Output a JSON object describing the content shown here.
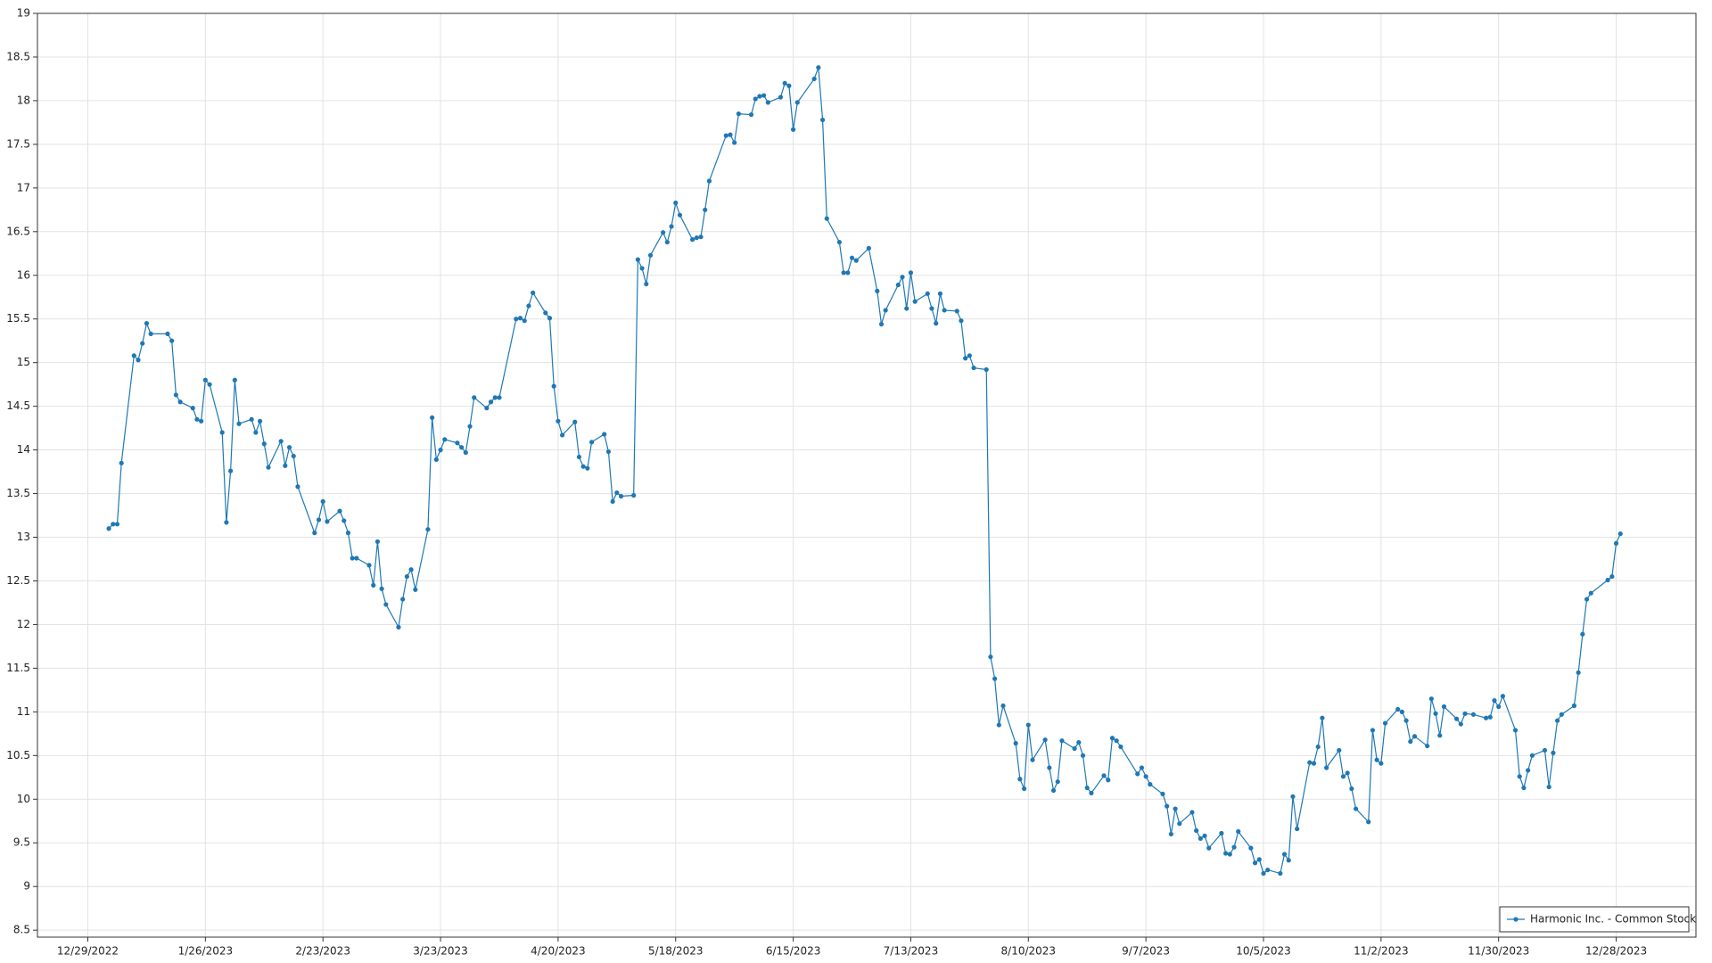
{
  "chart_data": {
    "type": "line",
    "x": [
      "2023-01-03",
      "2023-01-04",
      "2023-01-05",
      "2023-01-06",
      "2023-01-09",
      "2023-01-10",
      "2023-01-11",
      "2023-01-12",
      "2023-01-13",
      "2023-01-17",
      "2023-01-18",
      "2023-01-19",
      "2023-01-20",
      "2023-01-23",
      "2023-01-24",
      "2023-01-25",
      "2023-01-26",
      "2023-01-27",
      "2023-01-30",
      "2023-01-31",
      "2023-02-01",
      "2023-02-02",
      "2023-02-03",
      "2023-02-06",
      "2023-02-07",
      "2023-02-08",
      "2023-02-09",
      "2023-02-10",
      "2023-02-13",
      "2023-02-14",
      "2023-02-15",
      "2023-02-16",
      "2023-02-17",
      "2023-02-21",
      "2023-02-22",
      "2023-02-23",
      "2023-02-24",
      "2023-02-27",
      "2023-02-28",
      "2023-03-01",
      "2023-03-02",
      "2023-03-03",
      "2023-03-06",
      "2023-03-07",
      "2023-03-08",
      "2023-03-09",
      "2023-03-10",
      "2023-03-13",
      "2023-03-14",
      "2023-03-15",
      "2023-03-16",
      "2023-03-17",
      "2023-03-20",
      "2023-03-21",
      "2023-03-22",
      "2023-03-23",
      "2023-03-24",
      "2023-03-27",
      "2023-03-28",
      "2023-03-29",
      "2023-03-30",
      "2023-03-31",
      "2023-04-03",
      "2023-04-04",
      "2023-04-05",
      "2023-04-06",
      "2023-04-10",
      "2023-04-11",
      "2023-04-12",
      "2023-04-13",
      "2023-04-14",
      "2023-04-17",
      "2023-04-18",
      "2023-04-19",
      "2023-04-20",
      "2023-04-21",
      "2023-04-24",
      "2023-04-25",
      "2023-04-26",
      "2023-04-27",
      "2023-04-28",
      "2023-05-01",
      "2023-05-02",
      "2023-05-03",
      "2023-05-04",
      "2023-05-05",
      "2023-05-08",
      "2023-05-09",
      "2023-05-10",
      "2023-05-11",
      "2023-05-12",
      "2023-05-15",
      "2023-05-16",
      "2023-05-17",
      "2023-05-18",
      "2023-05-19",
      "2023-05-22",
      "2023-05-23",
      "2023-05-24",
      "2023-05-25",
      "2023-05-26",
      "2023-05-30",
      "2023-05-31",
      "2023-06-01",
      "2023-06-02",
      "2023-06-05",
      "2023-06-06",
      "2023-06-07",
      "2023-06-08",
      "2023-06-09",
      "2023-06-12",
      "2023-06-13",
      "2023-06-14",
      "2023-06-15",
      "2023-06-16",
      "2023-06-20",
      "2023-06-21",
      "2023-06-22",
      "2023-06-23",
      "2023-06-26",
      "2023-06-27",
      "2023-06-28",
      "2023-06-29",
      "2023-06-30",
      "2023-07-03",
      "2023-07-05",
      "2023-07-06",
      "2023-07-07",
      "2023-07-10",
      "2023-07-11",
      "2023-07-12",
      "2023-07-13",
      "2023-07-14",
      "2023-07-17",
      "2023-07-18",
      "2023-07-19",
      "2023-07-20",
      "2023-07-21",
      "2023-07-24",
      "2023-07-25",
      "2023-07-26",
      "2023-07-27",
      "2023-07-28",
      "2023-07-31",
      "2023-08-01",
      "2023-08-02",
      "2023-08-03",
      "2023-08-04",
      "2023-08-07",
      "2023-08-08",
      "2023-08-09",
      "2023-08-10",
      "2023-08-11",
      "2023-08-14",
      "2023-08-15",
      "2023-08-16",
      "2023-08-17",
      "2023-08-18",
      "2023-08-21",
      "2023-08-22",
      "2023-08-23",
      "2023-08-24",
      "2023-08-25",
      "2023-08-28",
      "2023-08-29",
      "2023-08-30",
      "2023-08-31",
      "2023-09-01",
      "2023-09-05",
      "2023-09-06",
      "2023-09-07",
      "2023-09-08",
      "2023-09-11",
      "2023-09-12",
      "2023-09-13",
      "2023-09-14",
      "2023-09-15",
      "2023-09-18",
      "2023-09-19",
      "2023-09-20",
      "2023-09-21",
      "2023-09-22",
      "2023-09-25",
      "2023-09-26",
      "2023-09-27",
      "2023-09-28",
      "2023-09-29",
      "2023-10-02",
      "2023-10-03",
      "2023-10-04",
      "2023-10-05",
      "2023-10-06",
      "2023-10-09",
      "2023-10-10",
      "2023-10-11",
      "2023-10-12",
      "2023-10-13",
      "2023-10-16",
      "2023-10-17",
      "2023-10-18",
      "2023-10-19",
      "2023-10-20",
      "2023-10-23",
      "2023-10-24",
      "2023-10-25",
      "2023-10-26",
      "2023-10-27",
      "2023-10-30",
      "2023-10-31",
      "2023-11-01",
      "2023-11-02",
      "2023-11-03",
      "2023-11-06",
      "2023-11-07",
      "2023-11-08",
      "2023-11-09",
      "2023-11-10",
      "2023-11-13",
      "2023-11-14",
      "2023-11-15",
      "2023-11-16",
      "2023-11-17",
      "2023-11-20",
      "2023-11-21",
      "2023-11-22",
      "2023-11-24",
      "2023-11-27",
      "2023-11-28",
      "2023-11-29",
      "2023-11-30",
      "2023-12-01",
      "2023-12-04",
      "2023-12-05",
      "2023-12-06",
      "2023-12-07",
      "2023-12-08",
      "2023-12-11",
      "2023-12-12",
      "2023-12-13",
      "2023-12-14",
      "2023-12-15",
      "2023-12-18",
      "2023-12-19",
      "2023-12-20",
      "2023-12-21",
      "2023-12-22",
      "2023-12-26",
      "2023-12-27",
      "2023-12-28",
      "2023-12-29"
    ],
    "series": [
      {
        "name": "Harmonic Inc. - Common Stock",
        "color": "#1f78b4",
        "values": [
          13.1,
          13.15,
          13.15,
          13.85,
          15.08,
          15.03,
          15.22,
          15.45,
          15.33,
          15.33,
          15.25,
          14.63,
          14.55,
          14.48,
          14.35,
          14.33,
          14.8,
          14.75,
          14.2,
          13.17,
          13.76,
          14.8,
          14.3,
          14.35,
          14.2,
          14.33,
          14.07,
          13.8,
          14.1,
          13.82,
          14.03,
          13.93,
          13.58,
          13.05,
          13.2,
          13.41,
          13.18,
          13.3,
          13.19,
          13.05,
          12.76,
          12.76,
          12.68,
          12.45,
          12.95,
          12.41,
          12.23,
          11.97,
          12.29,
          12.55,
          12.63,
          12.4,
          13.09,
          14.37,
          13.89,
          14.0,
          14.12,
          14.08,
          14.03,
          13.97,
          14.27,
          14.6,
          14.48,
          14.55,
          14.6,
          14.6,
          15.5,
          15.51,
          15.48,
          15.65,
          15.8,
          15.57,
          15.51,
          14.73,
          14.33,
          14.17,
          14.32,
          13.92,
          13.81,
          13.79,
          14.09,
          14.18,
          13.98,
          13.41,
          13.51,
          13.47,
          13.48,
          16.18,
          16.08,
          15.9,
          16.23,
          16.49,
          16.38,
          16.56,
          16.83,
          16.69,
          16.41,
          16.43,
          16.44,
          16.75,
          17.08,
          17.6,
          17.61,
          17.52,
          17.85,
          17.84,
          18.02,
          18.05,
          18.06,
          17.98,
          18.04,
          18.2,
          18.17,
          17.67,
          17.98,
          18.25,
          18.38,
          17.78,
          16.65,
          16.38,
          16.03,
          16.03,
          16.2,
          16.17,
          16.31,
          15.82,
          15.44,
          15.6,
          15.89,
          15.98,
          15.62,
          16.03,
          15.7,
          15.79,
          15.62,
          15.45,
          15.79,
          15.6,
          15.59,
          15.48,
          15.05,
          15.08,
          14.94,
          14.92,
          11.63,
          11.38,
          10.85,
          11.07,
          10.64,
          10.23,
          10.12,
          10.85,
          10.45,
          10.68,
          10.36,
          10.1,
          10.2,
          10.67,
          10.58,
          10.65,
          10.5,
          10.13,
          10.07,
          10.27,
          10.22,
          10.7,
          10.67,
          10.6,
          10.29,
          10.36,
          10.26,
          10.17,
          10.06,
          9.92,
          9.6,
          9.89,
          9.72,
          9.85,
          9.64,
          9.55,
          9.58,
          9.44,
          9.61,
          9.38,
          9.37,
          9.45,
          9.63,
          9.44,
          9.27,
          9.31,
          9.15,
          9.19,
          9.15,
          9.37,
          9.3,
          10.03,
          9.66,
          10.42,
          10.41,
          10.6,
          10.93,
          10.36,
          10.56,
          10.26,
          10.3,
          10.12,
          9.89,
          9.74,
          10.79,
          10.45,
          10.41,
          10.87,
          11.03,
          11.0,
          10.9,
          10.66,
          10.72,
          10.61,
          11.15,
          10.98,
          10.73,
          11.06,
          10.92,
          10.86,
          10.98,
          10.97,
          10.93,
          10.94,
          11.13,
          11.06,
          11.18,
          10.79,
          10.26,
          10.13,
          10.33,
          10.5,
          10.56,
          10.14,
          10.53,
          10.9,
          10.97,
          11.07,
          11.45,
          11.89,
          12.29,
          12.36,
          12.51,
          12.55,
          12.93,
          13.04
        ]
      }
    ],
    "xlim": [
      "2022-12-17",
      "2024-01-16"
    ],
    "xticks": [
      {
        "value": "2022-12-29",
        "label": "12/29/2022"
      },
      {
        "value": "2023-01-26",
        "label": "1/26/2023"
      },
      {
        "value": "2023-02-23",
        "label": "2/23/2023"
      },
      {
        "value": "2023-03-23",
        "label": "3/23/2023"
      },
      {
        "value": "2023-04-20",
        "label": "4/20/2023"
      },
      {
        "value": "2023-05-18",
        "label": "5/18/2023"
      },
      {
        "value": "2023-06-15",
        "label": "6/15/2023"
      },
      {
        "value": "2023-07-13",
        "label": "7/13/2023"
      },
      {
        "value": "2023-08-10",
        "label": "8/10/2023"
      },
      {
        "value": "2023-09-07",
        "label": "9/7/2023"
      },
      {
        "value": "2023-10-05",
        "label": "10/5/2023"
      },
      {
        "value": "2023-11-02",
        "label": "11/2/2023"
      },
      {
        "value": "2023-11-30",
        "label": "11/30/2023"
      },
      {
        "value": "2023-12-28",
        "label": "12/28/2023"
      }
    ],
    "ylim": [
      8.42,
      19
    ],
    "yticks": [
      8.5,
      9,
      9.5,
      10,
      10.5,
      11,
      11.5,
      12,
      12.5,
      13,
      13.5,
      14,
      14.5,
      15,
      15.5,
      16,
      16.5,
      17,
      17.5,
      18,
      18.5,
      19
    ],
    "grid": true,
    "legend": "bottom-right"
  }
}
